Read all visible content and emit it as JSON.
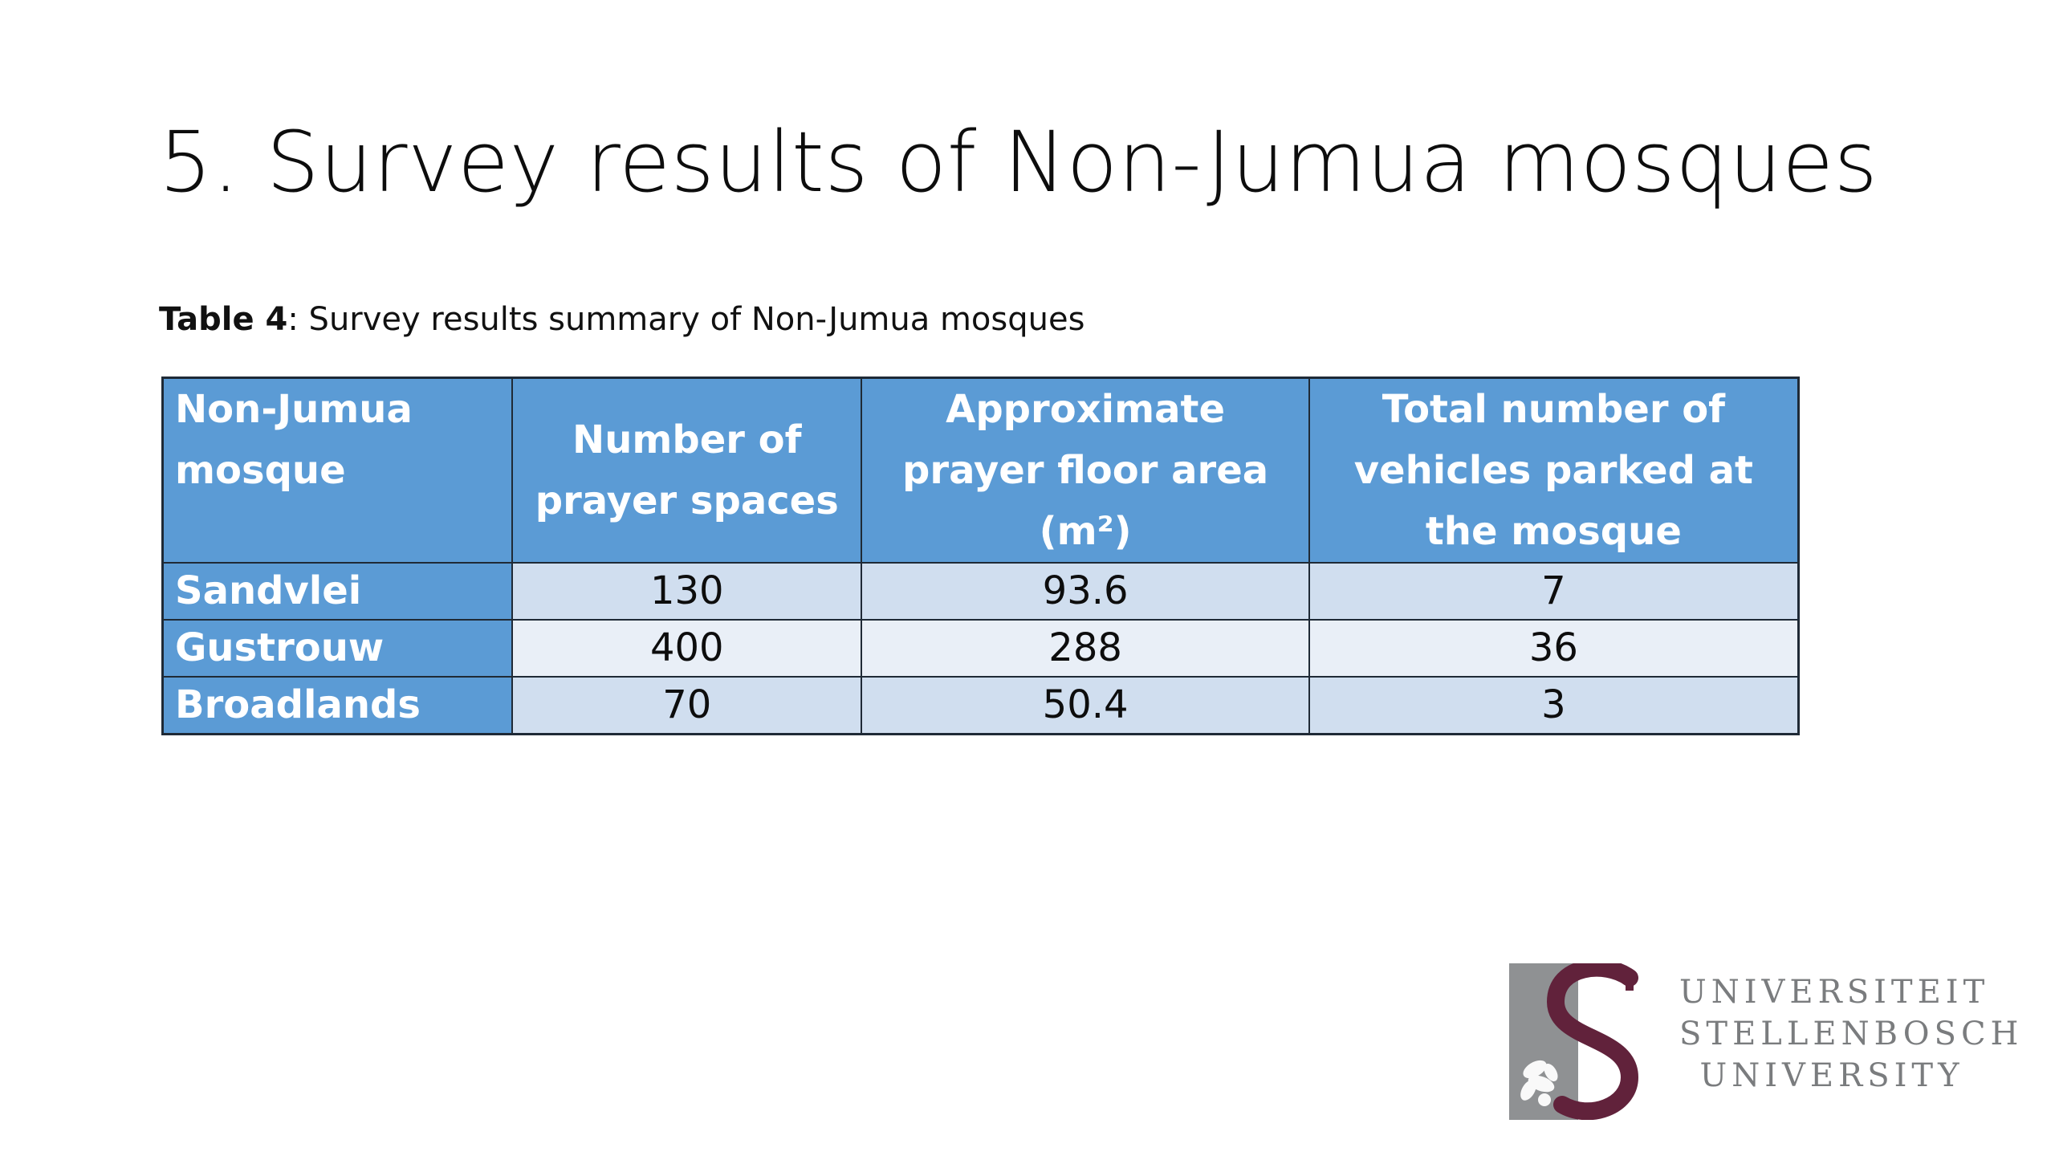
{
  "slide": {
    "title": "5. Survey results of Non-Jumua mosques"
  },
  "caption": {
    "label": "Table 4",
    "text": ": Survey results summary of Non-Jumua mosques"
  },
  "table": {
    "headers": [
      "Non-Jumua mosque",
      "Number of prayer spaces",
      "Approximate prayer floor area (m²)",
      "Total number of vehicles parked at the mosque"
    ],
    "rows": [
      {
        "name": "Sandvlei",
        "prayer_spaces": "130",
        "floor_area": "93.6",
        "vehicles": "7"
      },
      {
        "name": "Gustrouw",
        "prayer_spaces": "400",
        "floor_area": "288",
        "vehicles": "36"
      },
      {
        "name": "Broadlands",
        "prayer_spaces": "70",
        "floor_area": "50.4",
        "vehicles": "3"
      }
    ]
  },
  "logo": {
    "lines": [
      "UNIVERSITEIT",
      "STELLENBOSCH",
      "UNIVERSITY"
    ],
    "colors": {
      "grey": "#8f9193",
      "maroon": "#61223b"
    }
  },
  "colors": {
    "header_blue": "#5b9bd5",
    "row_light": "#d0deef",
    "row_lighter": "#e9eff7"
  }
}
